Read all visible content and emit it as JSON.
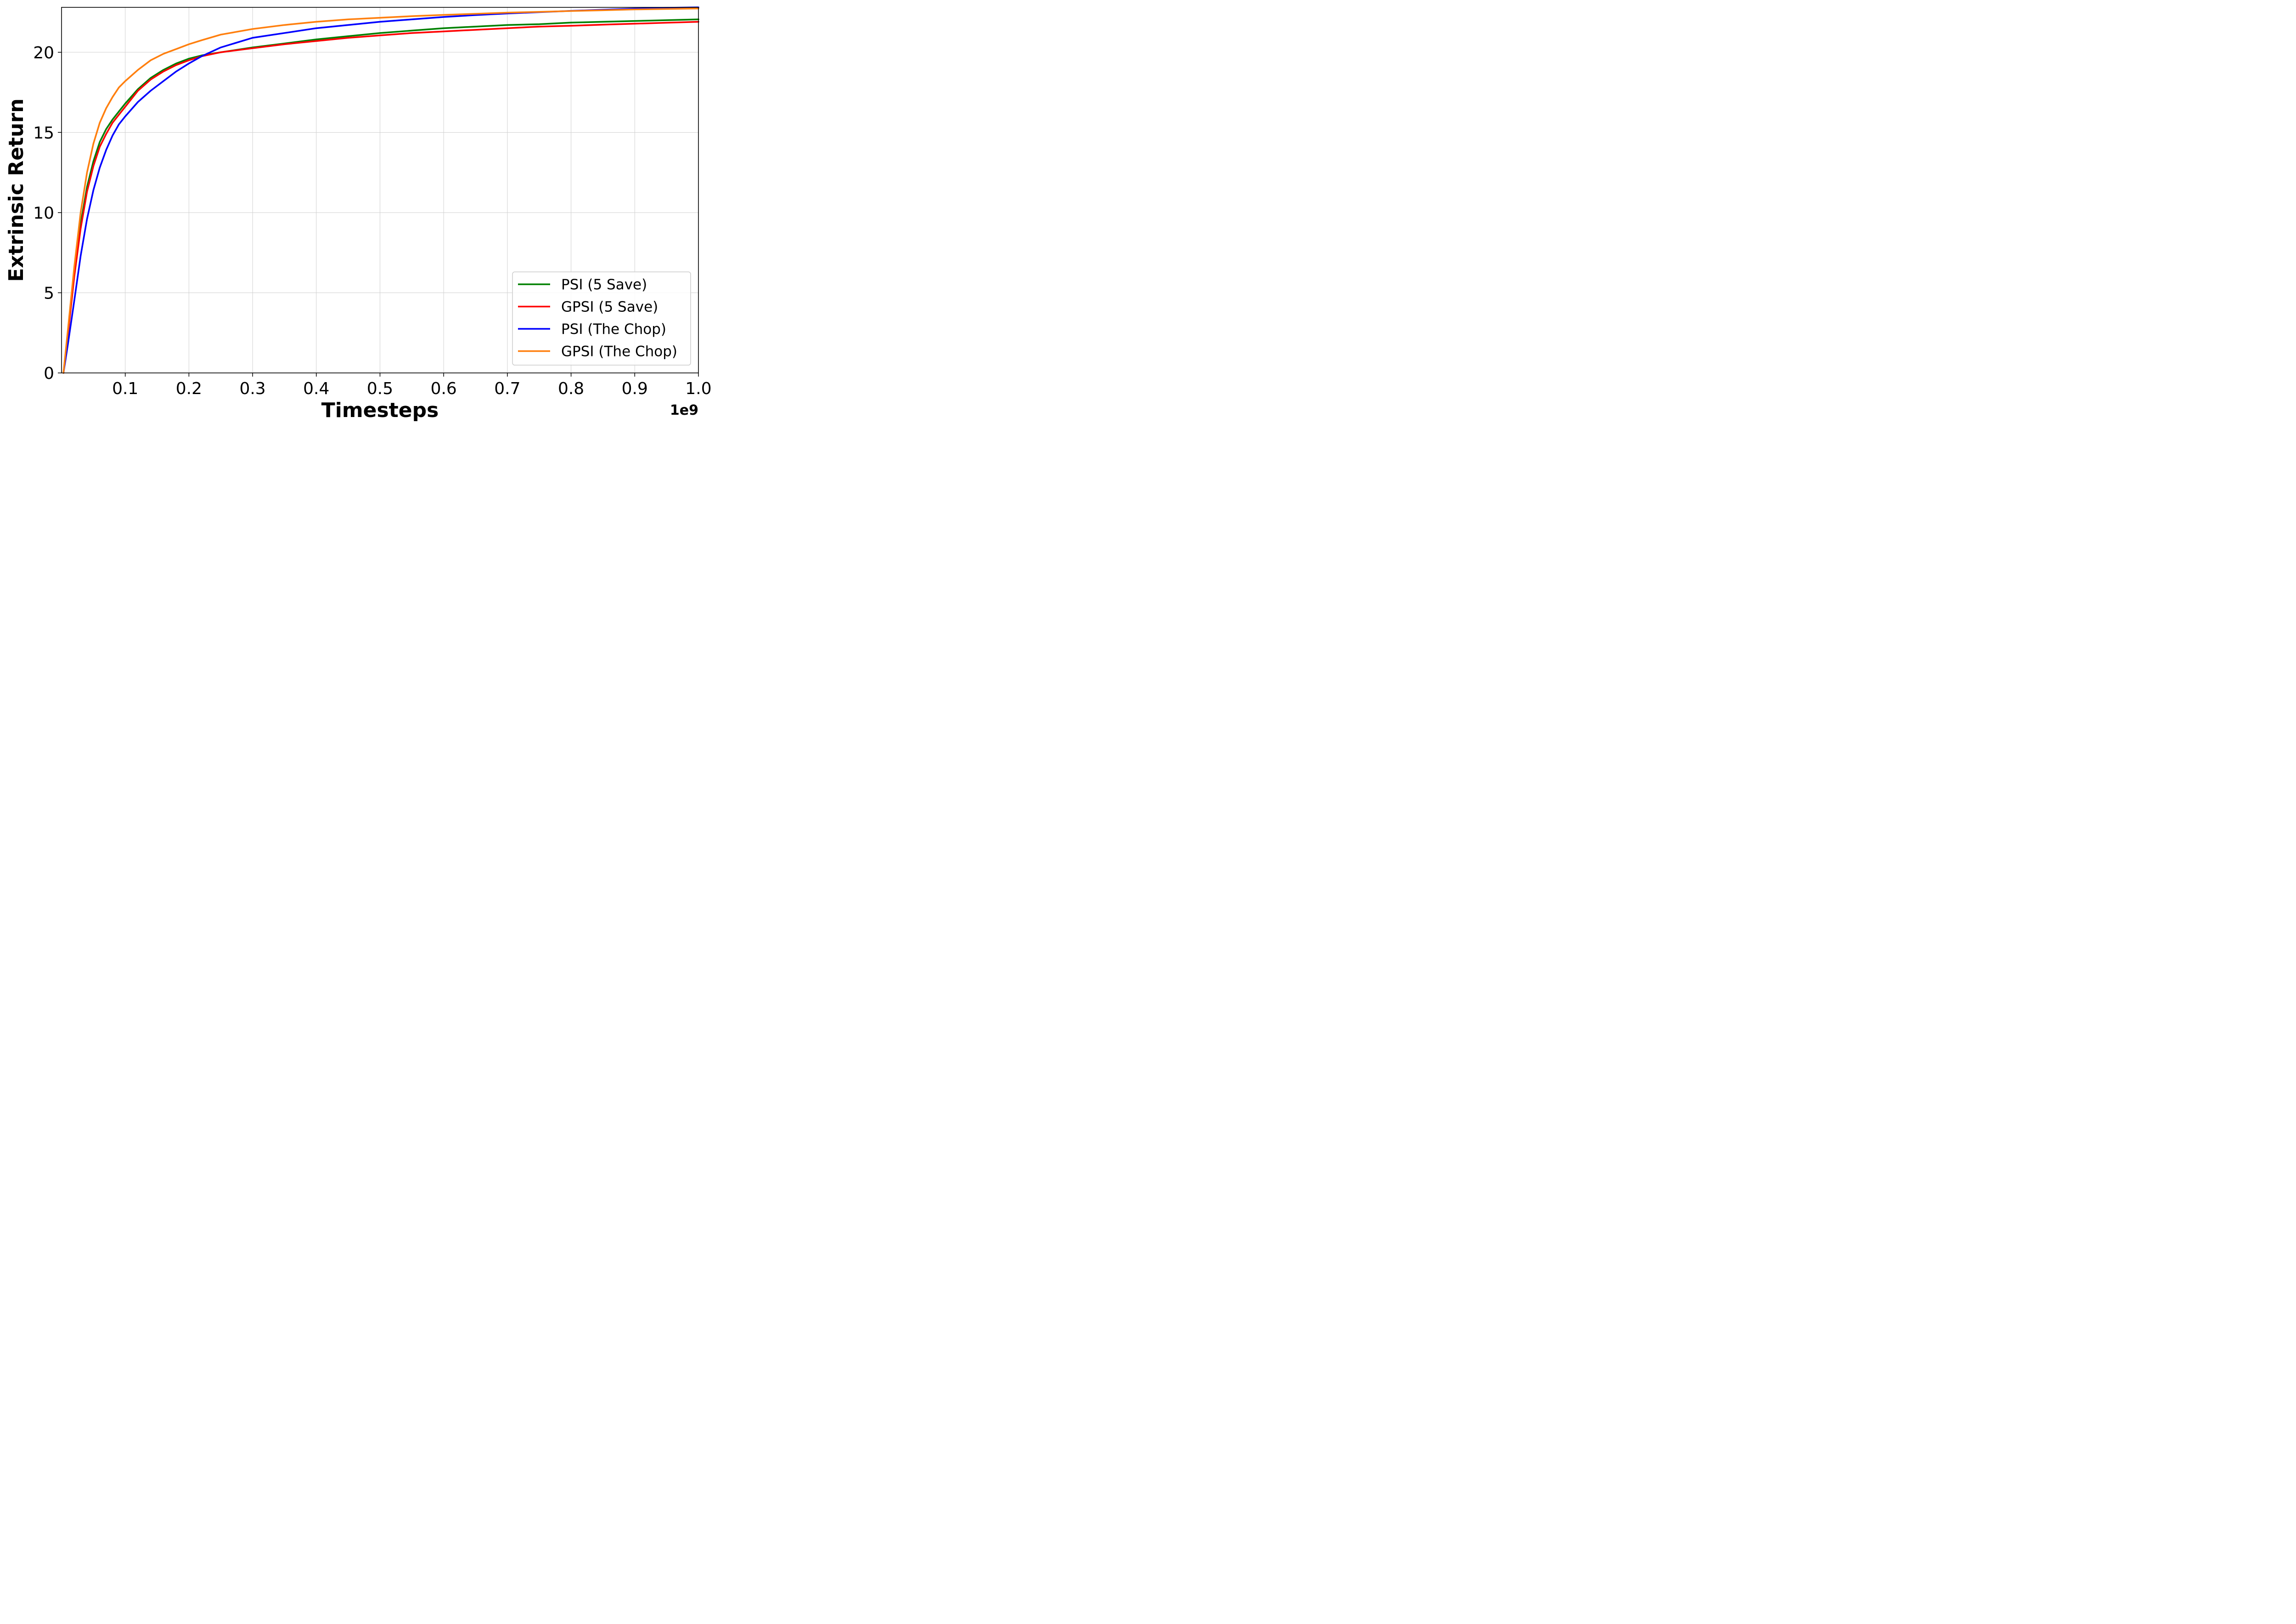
{
  "chart_data": {
    "type": "line",
    "xlabel": "Timesteps",
    "ylabel": "Extrinsic Return",
    "x_offset_label": "1e9",
    "xlim": [
      0.0,
      1.0
    ],
    "ylim": [
      0,
      22.8
    ],
    "xticks": [
      0.1,
      0.2,
      0.3,
      0.4,
      0.5,
      0.6,
      0.7,
      0.8,
      0.9,
      1.0
    ],
    "xtick_labels": [
      "0.1",
      "0.2",
      "0.3",
      "0.4",
      "0.5",
      "0.6",
      "0.7",
      "0.8",
      "0.9",
      "1.0"
    ],
    "yticks": [
      0,
      5,
      10,
      15,
      20
    ],
    "ytick_labels": [
      "0",
      "5",
      "10",
      "15",
      "20"
    ],
    "grid": true,
    "legend_position": "bottom-right",
    "series": [
      {
        "name": "PSI (5 Save)",
        "color": "#008000",
        "x": [
          0.003,
          0.01,
          0.02,
          0.03,
          0.04,
          0.05,
          0.06,
          0.07,
          0.08,
          0.09,
          0.1,
          0.12,
          0.14,
          0.16,
          0.18,
          0.2,
          0.22,
          0.25,
          0.3,
          0.35,
          0.4,
          0.45,
          0.5,
          0.55,
          0.6,
          0.65,
          0.7,
          0.75,
          0.8,
          0.85,
          0.9,
          0.95,
          1.0
        ],
        "y": [
          0,
          2.5,
          6.2,
          9.3,
          11.6,
          13.2,
          14.4,
          15.2,
          15.8,
          16.3,
          16.8,
          17.7,
          18.4,
          18.9,
          19.3,
          19.6,
          19.8,
          20.0,
          20.3,
          20.55,
          20.8,
          21.0,
          21.2,
          21.35,
          21.5,
          21.6,
          21.7,
          21.75,
          21.85,
          21.9,
          21.95,
          22.0,
          22.05
        ]
      },
      {
        "name": "GPSI (5 Save)",
        "color": "#ff0000",
        "x": [
          0.003,
          0.01,
          0.02,
          0.03,
          0.04,
          0.05,
          0.06,
          0.07,
          0.08,
          0.09,
          0.1,
          0.12,
          0.14,
          0.16,
          0.18,
          0.2,
          0.22,
          0.25,
          0.3,
          0.35,
          0.4,
          0.45,
          0.5,
          0.55,
          0.6,
          0.65,
          0.7,
          0.75,
          0.8,
          0.85,
          0.9,
          0.95,
          1.0
        ],
        "y": [
          0,
          2.4,
          6.0,
          9.0,
          11.3,
          12.9,
          14.1,
          14.9,
          15.6,
          16.1,
          16.6,
          17.6,
          18.3,
          18.8,
          19.2,
          19.5,
          19.75,
          20.0,
          20.25,
          20.5,
          20.7,
          20.9,
          21.05,
          21.2,
          21.3,
          21.4,
          21.5,
          21.6,
          21.65,
          21.72,
          21.78,
          21.84,
          21.9
        ]
      },
      {
        "name": "PSI (The Chop)",
        "color": "#0000ff",
        "x": [
          0.003,
          0.01,
          0.02,
          0.03,
          0.04,
          0.05,
          0.06,
          0.07,
          0.08,
          0.09,
          0.1,
          0.12,
          0.14,
          0.16,
          0.18,
          0.2,
          0.22,
          0.25,
          0.3,
          0.35,
          0.4,
          0.45,
          0.5,
          0.55,
          0.6,
          0.65,
          0.7,
          0.75,
          0.8,
          0.85,
          0.9,
          0.95,
          1.0
        ],
        "y": [
          0,
          1.8,
          4.5,
          7.3,
          9.6,
          11.4,
          12.8,
          13.9,
          14.8,
          15.5,
          16.0,
          16.9,
          17.6,
          18.2,
          18.8,
          19.3,
          19.75,
          20.3,
          20.9,
          21.2,
          21.5,
          21.7,
          21.9,
          22.05,
          22.2,
          22.32,
          22.42,
          22.5,
          22.58,
          22.65,
          22.72,
          22.77,
          22.8
        ]
      },
      {
        "name": "GPSI (The Chop)",
        "color": "#ff7f0e",
        "x": [
          0.003,
          0.01,
          0.02,
          0.03,
          0.04,
          0.05,
          0.06,
          0.07,
          0.08,
          0.09,
          0.1,
          0.12,
          0.14,
          0.16,
          0.18,
          0.2,
          0.22,
          0.25,
          0.3,
          0.35,
          0.4,
          0.45,
          0.5,
          0.55,
          0.6,
          0.65,
          0.7,
          0.75,
          0.8,
          0.85,
          0.9,
          0.95,
          1.0
        ],
        "y": [
          0,
          2.7,
          6.6,
          10.0,
          12.5,
          14.3,
          15.6,
          16.5,
          17.2,
          17.8,
          18.2,
          18.9,
          19.5,
          19.9,
          20.2,
          20.5,
          20.75,
          21.1,
          21.45,
          21.7,
          21.9,
          22.05,
          22.15,
          22.25,
          22.33,
          22.4,
          22.47,
          22.52,
          22.57,
          22.62,
          22.67,
          22.7,
          22.73
        ]
      }
    ]
  }
}
